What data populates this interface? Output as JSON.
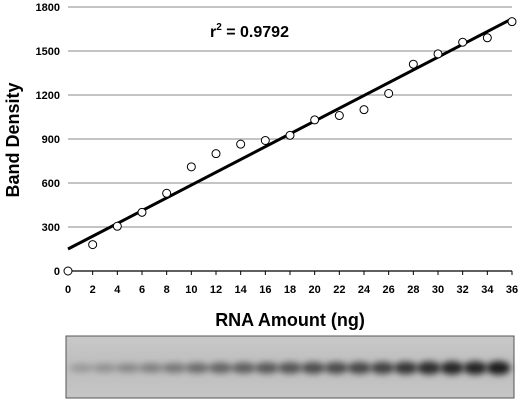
{
  "chart_data": {
    "type": "scatter",
    "xlabel": "RNA Amount (ng)",
    "ylabel": "Band Density",
    "xlim": [
      0,
      36
    ],
    "ylim": [
      0,
      1800
    ],
    "x_ticks": [
      "0",
      "2",
      "4",
      "6",
      "8",
      "10",
      "12",
      "14",
      "16",
      "18",
      "20",
      "22",
      "24",
      "26",
      "28",
      "30",
      "32",
      "34",
      "36"
    ],
    "y_ticks": [
      "0",
      "300",
      "600",
      "900",
      "1200",
      "1500",
      "1800"
    ],
    "grid": "horizontal",
    "annotation": {
      "prefix": "r",
      "superscript": "2",
      "suffix": " = 0.9792"
    },
    "series": [
      {
        "marker": "open-circle",
        "points": [
          {
            "x": 0,
            "y": 0
          },
          {
            "x": 2,
            "y": 180
          },
          {
            "x": 4,
            "y": 305
          },
          {
            "x": 6,
            "y": 400
          },
          {
            "x": 8,
            "y": 530
          },
          {
            "x": 10,
            "y": 710
          },
          {
            "x": 12,
            "y": 800
          },
          {
            "x": 14,
            "y": 865
          },
          {
            "x": 16,
            "y": 890
          },
          {
            "x": 18,
            "y": 925
          },
          {
            "x": 20,
            "y": 1030
          },
          {
            "x": 22,
            "y": 1060
          },
          {
            "x": 24,
            "y": 1100
          },
          {
            "x": 26,
            "y": 1210
          },
          {
            "x": 28,
            "y": 1410
          },
          {
            "x": 30,
            "y": 1480
          },
          {
            "x": 32,
            "y": 1560
          },
          {
            "x": 34,
            "y": 1590
          },
          {
            "x": 36,
            "y": 1700
          }
        ]
      }
    ],
    "trendline": {
      "x": [
        0,
        36
      ],
      "y": [
        150,
        1720
      ]
    }
  },
  "gel_band_intensities": [
    0.06,
    0.12,
    0.18,
    0.24,
    0.3,
    0.38,
    0.44,
    0.48,
    0.52,
    0.55,
    0.6,
    0.62,
    0.64,
    0.68,
    0.76,
    0.82,
    0.86,
    0.88,
    0.94
  ]
}
